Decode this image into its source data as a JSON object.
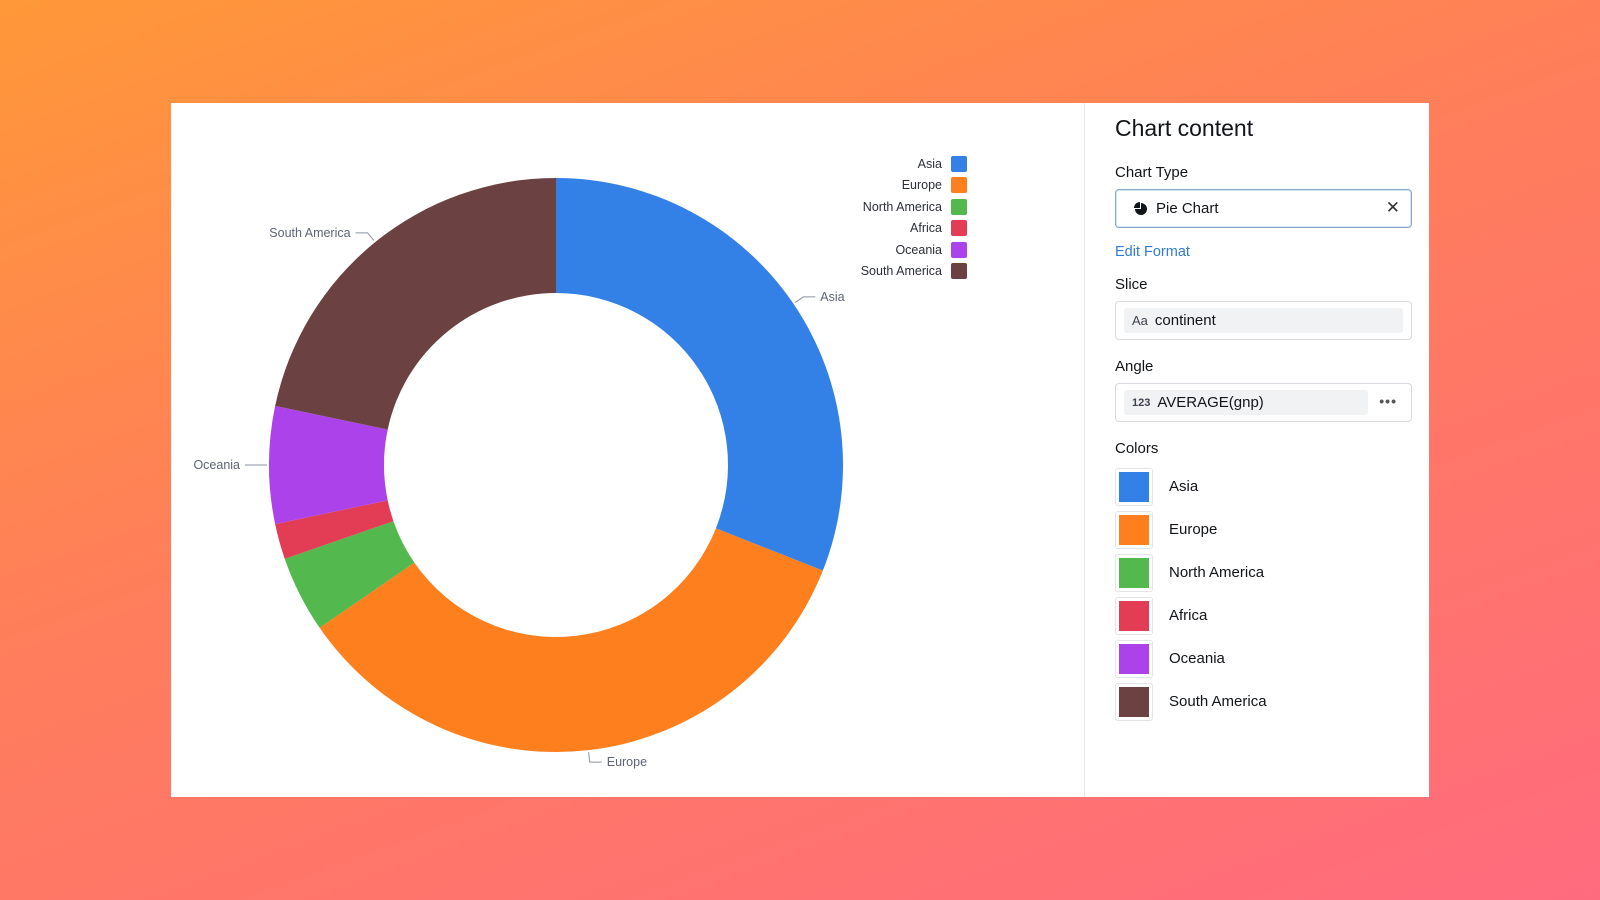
{
  "panel": {
    "title": "Chart content",
    "chart_type_label": "Chart Type",
    "chart_type_value": "Pie Chart",
    "edit_format": "Edit Format",
    "slice_label": "Slice",
    "slice_type_tag": "Aa",
    "slice_value": "continent",
    "angle_label": "Angle",
    "angle_type_tag": "123",
    "angle_value": "AVERAGE(gnp)",
    "colors_label": "Colors",
    "colors": [
      {
        "name": "Asia",
        "color": "#3381e6"
      },
      {
        "name": "Europe",
        "color": "#fe7f1e"
      },
      {
        "name": "North America",
        "color": "#53b84d"
      },
      {
        "name": "Africa",
        "color": "#e23d55"
      },
      {
        "name": "Oceania",
        "color": "#ac42e9"
      },
      {
        "name": "South America",
        "color": "#6b4141"
      }
    ]
  },
  "chart_data": {
    "type": "pie",
    "categories": [
      "Asia",
      "Europe",
      "North America",
      "Africa",
      "Oceania",
      "South America"
    ],
    "values": [
      31.0,
      34.4,
      4.3,
      2.0,
      6.6,
      21.7
    ],
    "legend_position": "top-right",
    "donut": true
  }
}
